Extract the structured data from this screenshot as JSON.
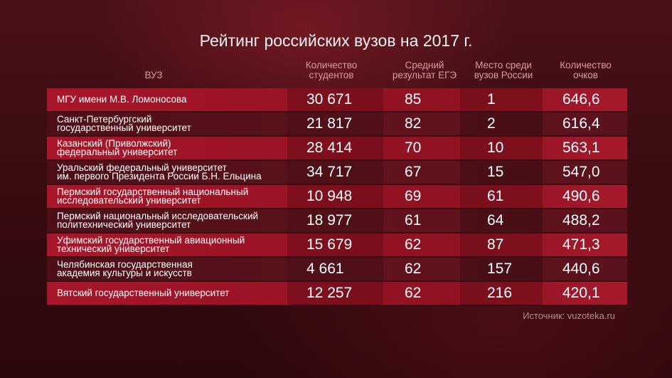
{
  "title": "Рейтинг российских вузов на 2017 г.",
  "headers": {
    "name": "ВУЗ",
    "students": "Количество\nстудентов",
    "score": "Средний\nрезультат ЕГЭ",
    "rank": "Место среди\nвузов России",
    "points": "Количество\nочков"
  },
  "rows": [
    {
      "name": "МГУ имени М.В. Ломоносова",
      "students": "30 671",
      "score": "85",
      "rank": "1",
      "points": "646,6"
    },
    {
      "name": "Санкт-Петербургский\nгосударственный университет",
      "students": "21 817",
      "score": "82",
      "rank": "2",
      "points": "616,4"
    },
    {
      "name": "Казанский (Приволжский)\nфедеральный университет",
      "students": "28 414",
      "score": "70",
      "rank": "10",
      "points": "563,1"
    },
    {
      "name": "Уральский федеральный университет\nим. первого Президента России Б.Н. Ельцина",
      "students": "34 717",
      "score": "67",
      "rank": "15",
      "points": "547,0"
    },
    {
      "name": "Пермский государственный национальный\nисследовательский университет",
      "students": "10 948",
      "score": "69",
      "rank": "61",
      "points": "490,6"
    },
    {
      "name": "Пермский национальный исследовательский\nполитехнический университет",
      "students": "18 977",
      "score": "61",
      "rank": "64",
      "points": "488,2"
    },
    {
      "name": "Уфимский государственный авиационный\nтехнический университет",
      "students": "15 679",
      "score": "62",
      "rank": "87",
      "points": "471,3"
    },
    {
      "name": "Челябинская государственная\nакадемия культуры и искусств",
      "students": "4 661",
      "score": "62",
      "rank": "157",
      "points": "440,6"
    },
    {
      "name": "Вятский государственный университет",
      "students": "12 257",
      "score": "62",
      "rank": "216",
      "points": "420,1"
    }
  ],
  "source": "Источник: vuzoteka.ru"
}
